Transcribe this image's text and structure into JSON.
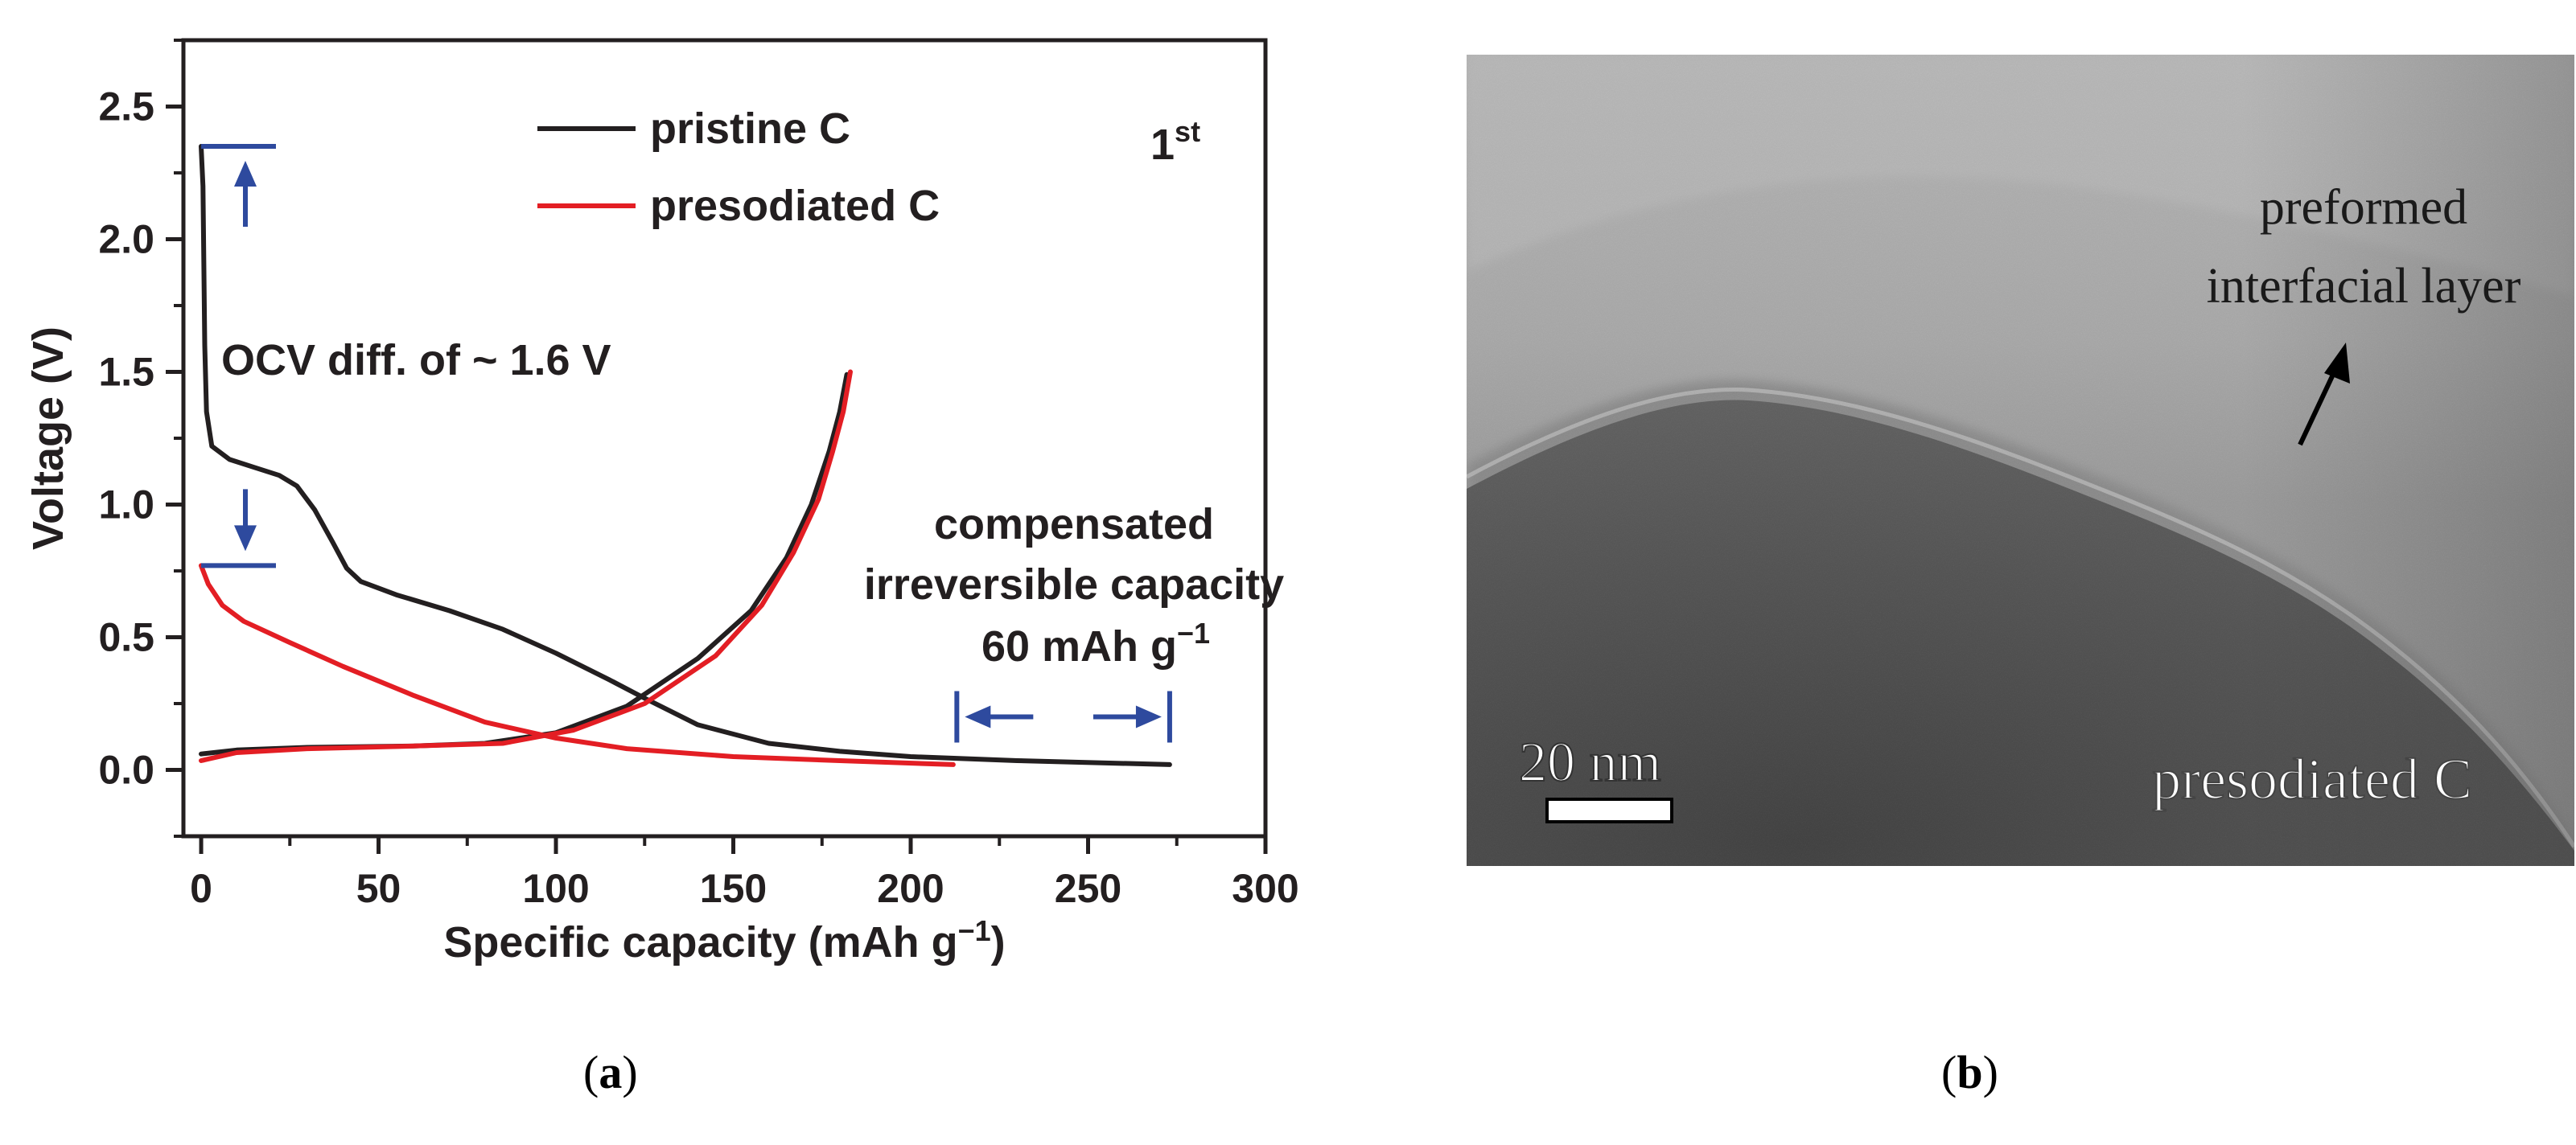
{
  "panel_a": {
    "caption_open": "(",
    "caption_letter": "a",
    "caption_close": ")"
  },
  "panel_b": {
    "caption_open": "(",
    "caption_letter": "b",
    "caption_close": ")",
    "annotation_line1": "preformed",
    "annotation_line2": "interfacial layer",
    "scale_bar_label": "20 nm",
    "sample_label": "presodiated C"
  },
  "colors": {
    "pristine": "#231f20",
    "presodiated": "#e31e24",
    "annotation_blue": "#2e4a9e"
  },
  "chart_data": {
    "type": "line",
    "title": "",
    "xlabel": "Specific capacity (mAh g",
    "xlabel_sup": "−1",
    "xlabel_close": ")",
    "ylabel": "Voltage (V)",
    "xlim": [
      -5,
      300
    ],
    "ylim": [
      -0.25,
      2.75
    ],
    "x_ticks": [
      "0",
      "50",
      "100",
      "150",
      "200",
      "250",
      "300"
    ],
    "y_ticks": [
      "0.0",
      "0.5",
      "1.0",
      "1.5",
      "2.0",
      "2.5"
    ],
    "grid": false,
    "legend_position": "top-center",
    "cycle_label": "1",
    "cycle_label_sup": "st",
    "series": [
      {
        "name": "pristine C",
        "color": "#231f20",
        "segments": [
          [
            [
              0,
              2.35
            ],
            [
              0.5,
              2.2
            ],
            [
              1,
              1.6
            ],
            [
              1.5,
              1.35
            ],
            [
              3,
              1.22
            ],
            [
              8,
              1.17
            ],
            [
              15,
              1.14
            ],
            [
              22,
              1.11
            ],
            [
              27,
              1.07
            ],
            [
              32,
              0.98
            ],
            [
              37,
              0.86
            ],
            [
              41,
              0.76
            ],
            [
              45,
              0.71
            ],
            [
              55,
              0.66
            ],
            [
              70,
              0.6
            ],
            [
              85,
              0.53
            ],
            [
              100,
              0.44
            ],
            [
              115,
              0.34
            ],
            [
              125,
              0.27
            ],
            [
              140,
              0.17
            ],
            [
              160,
              0.1
            ],
            [
              180,
              0.07
            ],
            [
              200,
              0.05
            ],
            [
              230,
              0.035
            ],
            [
              273,
              0.02
            ]
          ],
          [
            [
              0,
              0.06
            ],
            [
              10,
              0.075
            ],
            [
              30,
              0.085
            ],
            [
              60,
              0.09
            ],
            [
              80,
              0.1
            ],
            [
              100,
              0.14
            ],
            [
              120,
              0.24
            ],
            [
              140,
              0.42
            ],
            [
              155,
              0.6
            ],
            [
              165,
              0.8
            ],
            [
              172,
              1.0
            ],
            [
              177,
              1.2
            ],
            [
              180,
              1.35
            ],
            [
              182,
              1.49
            ]
          ]
        ]
      },
      {
        "name": "presodiated C",
        "color": "#e31e24",
        "segments": [
          [
            [
              0,
              0.77
            ],
            [
              2,
              0.7
            ],
            [
              6,
              0.62
            ],
            [
              12,
              0.56
            ],
            [
              25,
              0.48
            ],
            [
              40,
              0.39
            ],
            [
              60,
              0.28
            ],
            [
              80,
              0.18
            ],
            [
              100,
              0.12
            ],
            [
              120,
              0.08
            ],
            [
              150,
              0.05
            ],
            [
              180,
              0.035
            ],
            [
              212,
              0.02
            ]
          ],
          [
            [
              0,
              0.035
            ],
            [
              10,
              0.065
            ],
            [
              30,
              0.08
            ],
            [
              60,
              0.09
            ],
            [
              85,
              0.1
            ],
            [
              105,
              0.15
            ],
            [
              125,
              0.25
            ],
            [
              145,
              0.43
            ],
            [
              158,
              0.62
            ],
            [
              167,
              0.82
            ],
            [
              174,
              1.02
            ],
            [
              178,
              1.2
            ],
            [
              181,
              1.35
            ],
            [
              183,
              1.5
            ]
          ]
        ]
      }
    ],
    "annotations": {
      "ocv_text": "OCV diff. of ~ 1.6 V",
      "comp_line1": "compensated",
      "comp_line2": "irreversible capacity",
      "comp_value": "60 mAh g",
      "comp_value_sup": "−1",
      "ocv_top_v": 2.35,
      "ocv_bottom_v": 0.77,
      "comp_start_x": 213,
      "comp_end_x": 273,
      "comp_arrow_y": 0.2
    }
  }
}
